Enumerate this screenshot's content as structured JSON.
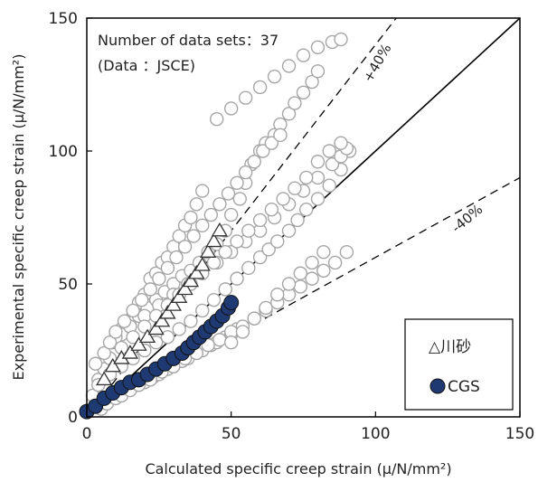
{
  "chart_data": {
    "type": "scatter",
    "xlabel": "Calculated specific creep strain (μ/N/mm²)",
    "ylabel": "Experimental specific creep strain (μ/N/mm²)",
    "xlim": [
      0,
      150
    ],
    "ylim": [
      0,
      150
    ],
    "xticks": [
      "0",
      "50",
      "100",
      "150"
    ],
    "yticks": [
      "0",
      "50",
      "100",
      "150"
    ],
    "grid": false,
    "legend_position": "bottom-right",
    "annotations": [
      "Number of data sets：37",
      "(Data ：JSCE)"
    ],
    "reference_lines": [
      {
        "label": "",
        "slope": 1.0,
        "style": "solid"
      },
      {
        "label": "+40%",
        "slope": 1.4,
        "style": "dashed"
      },
      {
        "label": "-40%",
        "slope": 0.6,
        "style": "dashed"
      }
    ],
    "series": [
      {
        "name": "",
        "marker": "open-circle",
        "color": "#a6a6a6",
        "x": [
          2,
          4,
          6,
          8,
          10,
          12,
          14,
          16,
          18,
          20,
          22,
          24,
          26,
          28,
          30,
          32,
          34,
          36,
          38,
          40,
          5,
          7,
          10,
          12,
          15,
          18,
          20,
          23,
          25,
          28,
          30,
          33,
          35,
          38,
          40,
          43,
          45,
          48,
          50,
          52,
          3,
          6,
          9,
          12,
          15,
          18,
          21,
          24,
          27,
          30,
          33,
          36,
          39,
          42,
          45,
          48,
          50,
          53,
          55,
          57,
          60,
          62,
          65,
          67,
          70,
          72,
          75,
          78,
          80,
          4,
          8,
          12,
          16,
          20,
          24,
          28,
          32,
          36,
          40,
          44,
          48,
          52,
          56,
          60,
          63,
          66,
          70,
          73,
          76,
          80,
          84,
          88,
          91,
          10,
          15,
          20,
          25,
          30,
          35,
          40,
          45,
          50,
          55,
          60,
          65,
          70,
          75,
          80,
          85,
          88,
          90,
          12,
          16,
          20,
          24,
          28,
          32,
          36,
          40,
          44,
          48,
          52,
          56,
          60,
          64,
          68,
          72,
          76,
          80,
          84,
          88,
          18,
          22,
          26,
          30,
          34,
          38,
          42,
          46,
          50,
          54,
          58,
          62,
          66,
          70,
          74,
          78,
          82,
          86,
          90,
          8,
          10,
          13,
          16,
          19,
          22,
          25,
          28,
          31,
          34,
          37,
          40,
          43,
          46,
          49,
          52,
          55,
          58,
          61,
          64,
          67,
          50,
          54,
          58,
          62,
          66,
          70,
          74,
          78,
          82,
          45,
          50,
          55,
          60,
          65,
          70,
          75,
          80,
          85,
          88
        ],
        "y": [
          8,
          14,
          18,
          22,
          28,
          33,
          36,
          38,
          43,
          46,
          52,
          54,
          58,
          60,
          64,
          68,
          72,
          75,
          80,
          85,
          3,
          5,
          7,
          8,
          10,
          12,
          13,
          15,
          16,
          18,
          19,
          21,
          22,
          24,
          25,
          27,
          28,
          30,
          31,
          33,
          20,
          24,
          28,
          31,
          34,
          38,
          41,
          44,
          47,
          50,
          53,
          55,
          58,
          62,
          65,
          70,
          76,
          82,
          88,
          95,
          100,
          103,
          106,
          110,
          114,
          118,
          122,
          126,
          130,
          12,
          16,
          19,
          22,
          25,
          28,
          30,
          33,
          36,
          40,
          44,
          48,
          52,
          56,
          60,
          63,
          66,
          70,
          74,
          78,
          82,
          87,
          93,
          100,
          30,
          34,
          38,
          42,
          46,
          50,
          54,
          58,
          62,
          66,
          70,
          75,
          80,
          85,
          90,
          95,
          98,
          101,
          26,
          30,
          34,
          38,
          42,
          46,
          50,
          54,
          58,
          62,
          66,
          70,
          74,
          78,
          82,
          86,
          90,
          96,
          100,
          103,
          12,
          14,
          17,
          19,
          22,
          24,
          27,
          29,
          32,
          34,
          37,
          40,
          43,
          46,
          49,
          52,
          55,
          58,
          62,
          28,
          32,
          36,
          40,
          44,
          48,
          52,
          56,
          60,
          64,
          68,
          72,
          76,
          80,
          84,
          88,
          92,
          96,
          100,
          103,
          106,
          28,
          32,
          37,
          41,
          46,
          50,
          54,
          58,
          62,
          112,
          116,
          120,
          124,
          128,
          132,
          136,
          139,
          141,
          142
        ]
      },
      {
        "name": "△川砂",
        "marker": "open-triangle",
        "color": "#333333",
        "x": [
          6,
          9,
          12,
          15,
          18,
          21,
          24,
          26,
          28,
          30,
          32,
          34,
          36,
          38,
          40,
          42,
          44,
          46
        ],
        "y": [
          14,
          19,
          22,
          24,
          27,
          30,
          33,
          36,
          39,
          42,
          45,
          48,
          51,
          54,
          57,
          62,
          66,
          70
        ]
      },
      {
        "name": "CGS",
        "marker": "filled-circle",
        "color": "#1f3a73",
        "x": [
          0,
          3,
          6,
          9,
          12,
          15,
          18,
          21,
          24,
          27,
          30,
          33,
          35,
          37,
          39,
          41,
          43,
          45,
          47,
          49,
          50
        ],
        "y": [
          2,
          4,
          7,
          9,
          11,
          13,
          14,
          16,
          18,
          20,
          22,
          24,
          26,
          28,
          30,
          32,
          34,
          36,
          38,
          41,
          43
        ]
      }
    ]
  }
}
